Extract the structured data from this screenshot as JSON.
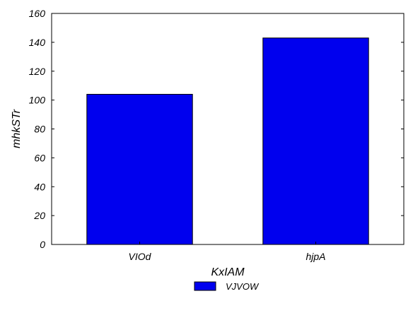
{
  "chart_data": {
    "type": "bar",
    "title": "",
    "xlabel": "KxIAM",
    "ylabel": "mhkSTr",
    "categories": [
      "VIOd",
      "hjpA"
    ],
    "series": [
      {
        "name": "VJVOW",
        "values": [
          104,
          143
        ],
        "color": "#0000ee"
      }
    ],
    "ylim": [
      0,
      160
    ],
    "yticks": [
      0,
      20,
      40,
      60,
      80,
      100,
      120,
      140,
      160
    ],
    "grid": false,
    "legend_position": "bottom-center"
  }
}
